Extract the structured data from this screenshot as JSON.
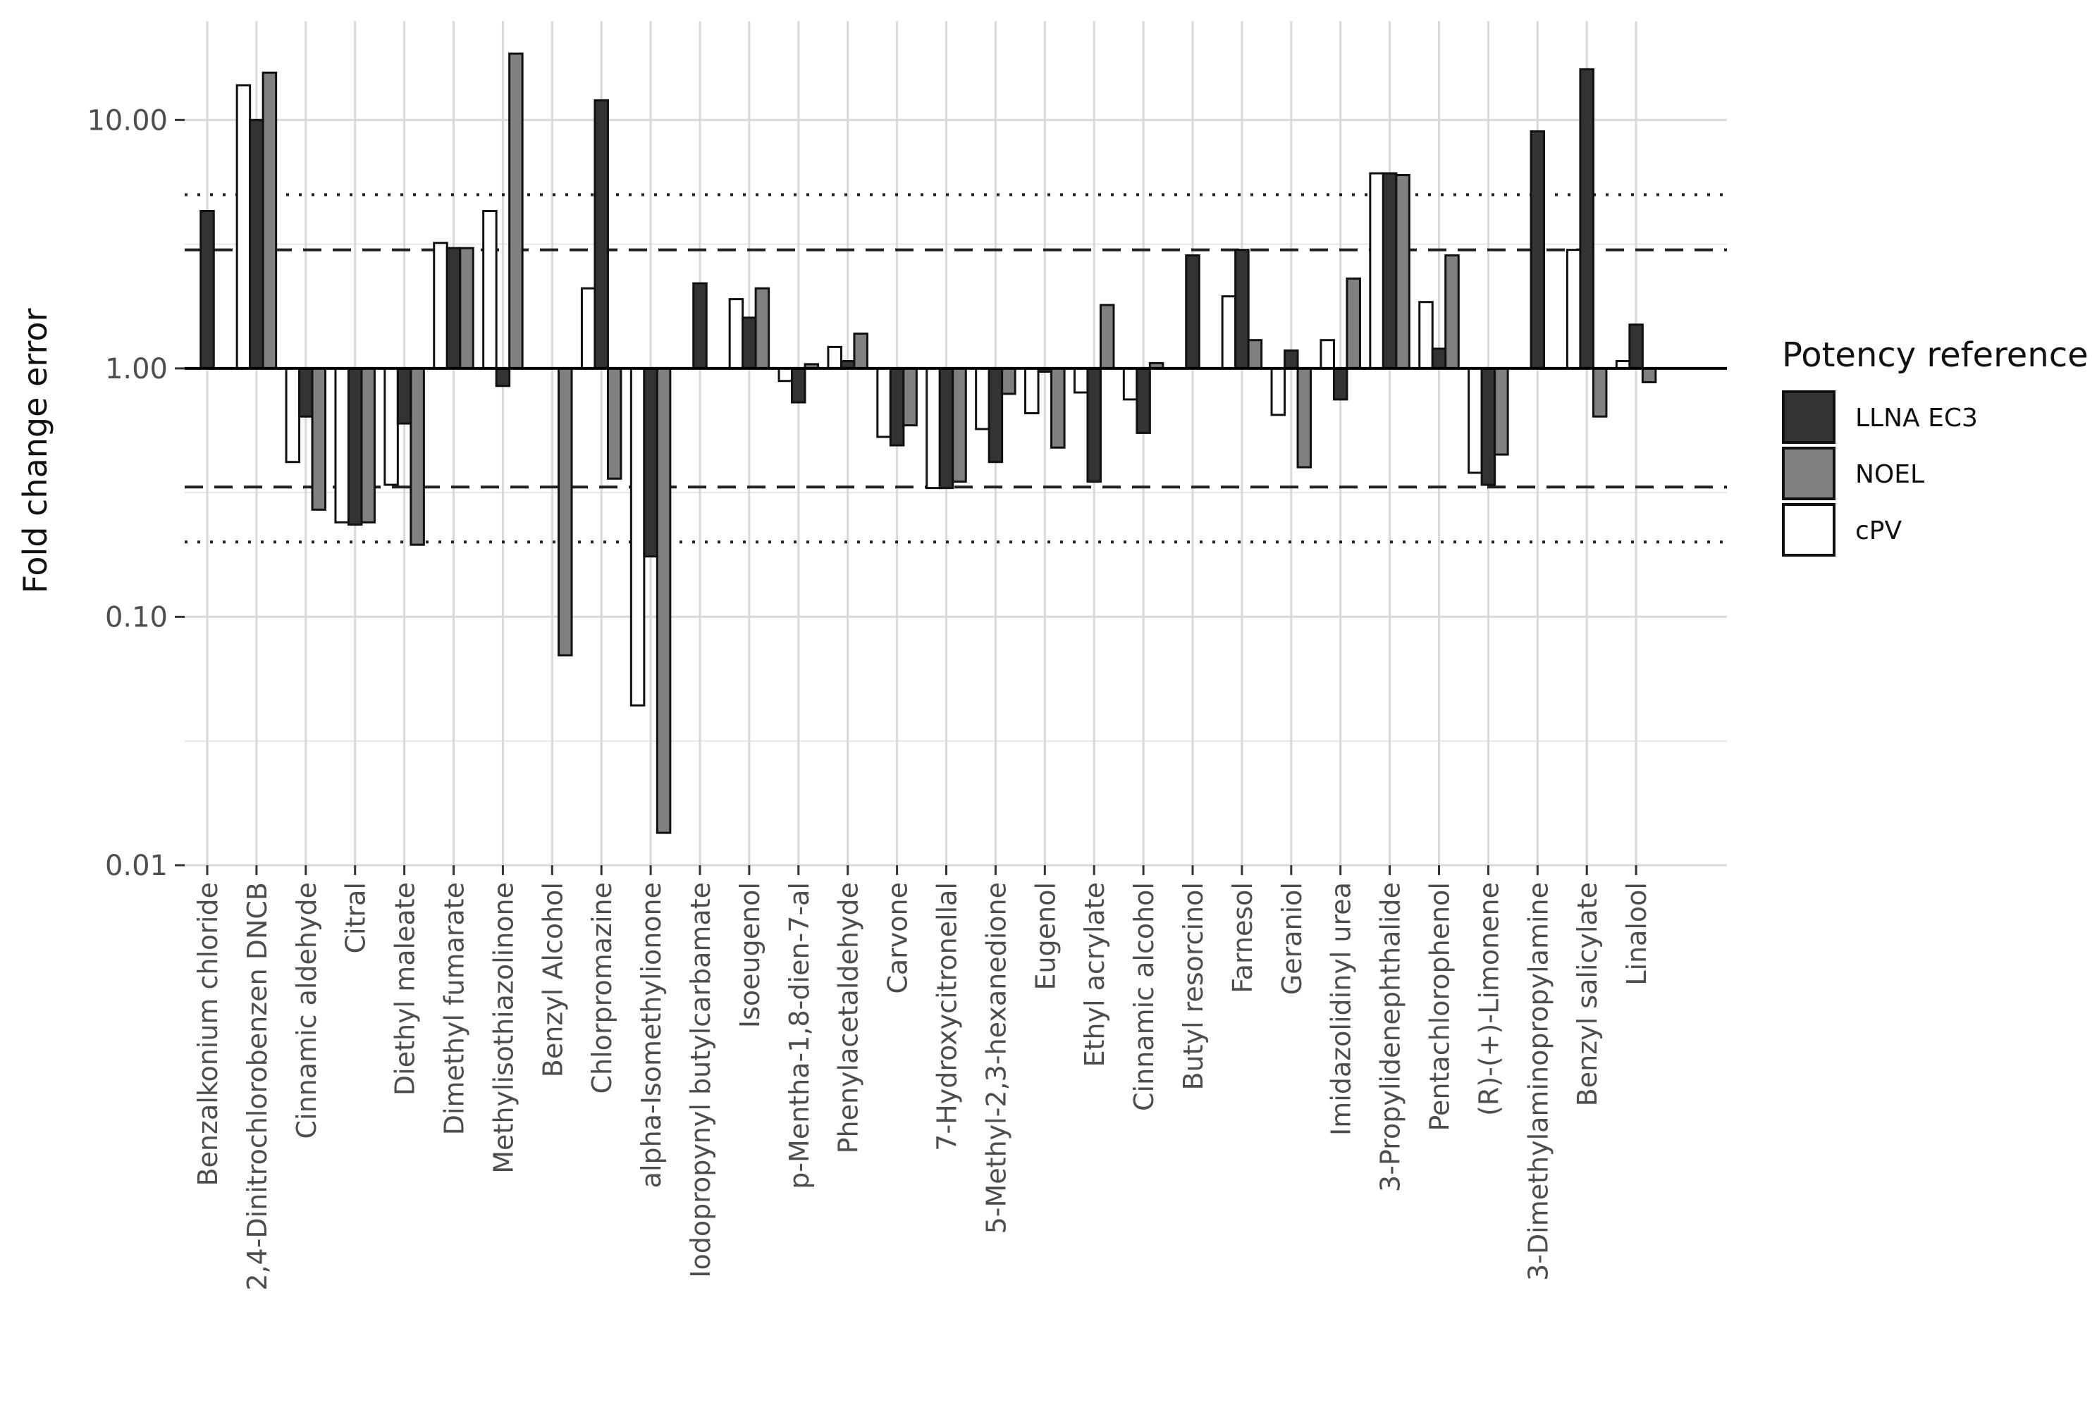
{
  "chart_data": {
    "type": "bar",
    "scale": "log10",
    "title": "",
    "xlabel": "",
    "ylabel": "Fold change error",
    "ylim": [
      0.01,
      25
    ],
    "yticks": [
      0.01,
      0.1,
      1,
      10
    ],
    "ytick_labels": [
      "0.01",
      "0.10",
      "1.00",
      "10.00"
    ],
    "baseline": 1,
    "reference_lines": [
      {
        "value": 5,
        "style": "dotted"
      },
      {
        "value": 3,
        "style": "dashed"
      },
      {
        "value": 0.333,
        "style": "dashed"
      },
      {
        "value": 0.2,
        "style": "dotted"
      }
    ],
    "legend": {
      "title": "Potency reference",
      "position": "right",
      "entries": [
        {
          "name": "LLNA EC3",
          "color": "#333333"
        },
        {
          "name": "NOEL",
          "color": "#808080"
        },
        {
          "name": "cPV",
          "color": "#ffffff"
        }
      ]
    },
    "series_order": [
      "cPV",
      "LLNA EC3",
      "NOEL"
    ],
    "categories": [
      "Benzalkonium chloride",
      "2,4-Dinitrochlorobenzen DNCB",
      "Cinnamic aldehyde",
      "Citral",
      "Diethyl maleate",
      "Dimethyl fumarate",
      "Methylisothiazolinone",
      "Benzyl Alcohol",
      "Chlorpromazine",
      "alpha-Isomethylionone",
      "Iodopropynyl butylcarbamate",
      "Isoeugenol",
      "p-Mentha-1,8-dien-7-al",
      "Phenylacetaldehyde",
      "Carvone",
      "7-Hydroxycitronellal",
      "5-Methyl-2,3-hexanedione",
      "Eugenol",
      "Ethyl acrylate",
      "Cinnamic alcohol",
      "Butyl resorcinol",
      "Farnesol",
      "Geraniol",
      "Imidazolidinyl urea",
      "3-Propylidenephthalide",
      "Pentachlorophenol",
      "(R)-(+)-Limonene",
      "3-Dimethylaminopropylamine",
      "Benzyl salicylate",
      "Linalool"
    ],
    "series": [
      {
        "name": "cPV",
        "values": [
          null,
          13.8,
          0.42,
          0.24,
          0.34,
          3.2,
          4.3,
          null,
          2.1,
          0.044,
          null,
          1.9,
          0.89,
          1.22,
          0.53,
          0.33,
          0.57,
          0.66,
          0.8,
          0.75,
          null,
          1.95,
          0.65,
          1.3,
          6.1,
          1.85,
          0.38,
          null,
          3.0,
          1.07
        ]
      },
      {
        "name": "LLNA EC3",
        "values": [
          4.3,
          10.0,
          0.64,
          0.235,
          0.6,
          3.05,
          0.85,
          null,
          12.0,
          0.175,
          2.2,
          1.6,
          0.73,
          1.07,
          0.49,
          0.33,
          0.42,
          0.97,
          0.35,
          0.55,
          2.85,
          3.0,
          1.18,
          0.75,
          6.1,
          1.2,
          0.34,
          9.0,
          16.0,
          1.5
        ]
      },
      {
        "name": "NOEL",
        "values": [
          null,
          15.5,
          0.27,
          0.24,
          0.195,
          3.05,
          18.5,
          0.07,
          0.36,
          0.0135,
          null,
          2.1,
          1.04,
          1.38,
          0.59,
          0.35,
          0.79,
          0.48,
          1.8,
          1.05,
          null,
          1.3,
          0.4,
          2.3,
          6.0,
          2.85,
          0.45,
          null,
          0.64,
          0.88
        ]
      }
    ]
  }
}
